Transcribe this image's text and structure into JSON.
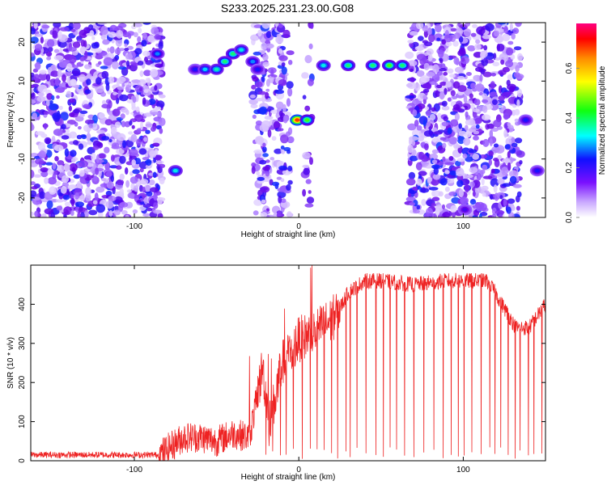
{
  "title": "S233.2025.231.23.00.G08",
  "colors": {
    "snr_line": "#ee2222",
    "axis": "#000000",
    "background": "#ffffff"
  },
  "chart_data": [
    {
      "type": "heatmap",
      "xlabel": "Height of straight line (km)",
      "ylabel": "Frequency (Hz)",
      "xlim": [
        -163,
        150
      ],
      "ylim": [
        -25,
        25
      ],
      "xticks": [
        -100,
        0,
        100
      ],
      "xtick_labels": [
        "-100",
        "0",
        "100"
      ],
      "yticks": [
        -20,
        -10,
        0,
        10,
        20
      ],
      "ytick_labels": [
        "-20",
        "-10",
        "0",
        "10",
        "20"
      ],
      "colorbar": {
        "label": "Normalized spectral amplitude",
        "range": [
          0.0,
          0.78
        ],
        "ticks": [
          0.0,
          0.2,
          0.4,
          0.6
        ],
        "tick_labels": [
          "0.0",
          "0.2",
          "0.4",
          "0.6"
        ],
        "colormap": "rainbow-violet-to-red"
      },
      "noise_regions": [
        {
          "x0": -163,
          "x1": -83,
          "density": 1.0
        },
        {
          "x0": -28,
          "x1": -18,
          "density": 0.45
        },
        {
          "x0": -25,
          "x1": -10,
          "density": 0.6
        },
        {
          "x0": -12,
          "x1": -5,
          "density": 0.8
        },
        {
          "x0": 3,
          "x1": 8,
          "density": 0.35
        },
        {
          "x0": 67,
          "x1": 135,
          "density": 1.0
        }
      ],
      "features": [
        {
          "x": -86,
          "y": 17,
          "amp": 0.35
        },
        {
          "x": -75,
          "y": -13,
          "amp": 0.4
        },
        {
          "x": -63,
          "y": 13,
          "amp": 0.3
        },
        {
          "x": -57,
          "y": 13,
          "amp": 0.38
        },
        {
          "x": -50,
          "y": 13,
          "amp": 0.42
        },
        {
          "x": -45,
          "y": 15,
          "amp": 0.45
        },
        {
          "x": -40,
          "y": 17,
          "amp": 0.45
        },
        {
          "x": -35,
          "y": 18,
          "amp": 0.4
        },
        {
          "x": -28,
          "y": 15,
          "amp": 0.35
        },
        {
          "x": -25,
          "y": 13,
          "amp": 0.3
        },
        {
          "x": -1,
          "y": 0,
          "amp": 0.75
        },
        {
          "x": 5,
          "y": 0,
          "amp": 0.5
        },
        {
          "x": 15,
          "y": 14,
          "amp": 0.4
        },
        {
          "x": 30,
          "y": 14,
          "amp": 0.45
        },
        {
          "x": 45,
          "y": 14,
          "amp": 0.45
        },
        {
          "x": 55,
          "y": 14,
          "amp": 0.5
        },
        {
          "x": 63,
          "y": 14,
          "amp": 0.45
        },
        {
          "x": 138,
          "y": 0,
          "amp": 0.3
        },
        {
          "x": 145,
          "y": -13,
          "amp": 0.3
        },
        {
          "x": 101,
          "y": -23,
          "amp": 0.25
        }
      ]
    },
    {
      "type": "line",
      "xlabel": "Height of straight line (km)",
      "ylabel": "SNR (10 * v/v)",
      "xlim": [
        -163,
        150
      ],
      "ylim": [
        0,
        500
      ],
      "xticks": [
        -100,
        0,
        100
      ],
      "xtick_labels": [
        "-100",
        "0",
        "100"
      ],
      "yticks": [
        0,
        100,
        200,
        300,
        400
      ],
      "ytick_labels": [
        "0",
        "100",
        "200",
        "300",
        "400"
      ],
      "series": [
        {
          "name": "SNR",
          "color": "#ee2222",
          "baseline": {
            "x": [
              -163,
              -120,
              -85,
              -80,
              -70,
              -60,
              -50,
              -40,
              -30,
              -22,
              -18,
              -10,
              0,
              10,
              20,
              25,
              30,
              40,
              50,
              60,
              70,
              80,
              90,
              100,
              110,
              114,
              118,
              125,
              132,
              140,
              150
            ],
            "y": [
              15,
              15,
              15,
              30,
              60,
              60,
              50,
              70,
              60,
              240,
              90,
              250,
              310,
              330,
              360,
              390,
              430,
              460,
              460,
              455,
              450,
              455,
              460,
              460,
              460,
              460,
              440,
              390,
              340,
              340,
              400
            ]
          },
          "noise_amplitude": [
            {
              "x0": -163,
              "x1": -85,
              "amp": 8
            },
            {
              "x0": -85,
              "x1": -25,
              "amp": 40
            },
            {
              "x0": -25,
              "x1": 25,
              "amp": 60
            },
            {
              "x0": 25,
              "x1": 150,
              "amp": 20
            }
          ],
          "dropouts_start_x": -20,
          "dropouts_end_x": 150,
          "dropout_spacing": 4.4
        }
      ]
    }
  ]
}
